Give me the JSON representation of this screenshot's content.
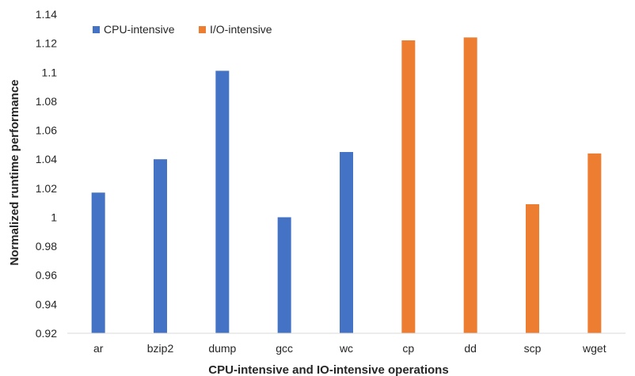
{
  "chart_data": {
    "type": "bar",
    "categories": [
      "ar",
      "bzip2",
      "dump",
      "gcc",
      "wc",
      "cp",
      "dd",
      "scp",
      "wget"
    ],
    "values": [
      1.017,
      1.04,
      1.101,
      1.0,
      1.045,
      1.122,
      1.124,
      1.009,
      1.044
    ],
    "groups": [
      "CPU-intensive",
      "CPU-intensive",
      "CPU-intensive",
      "CPU-intensive",
      "CPU-intensive",
      "I/O-intensive",
      "I/O-intensive",
      "I/O-intensive",
      "I/O-intensive"
    ],
    "series": [
      {
        "name": "CPU-intensive",
        "color": "#4472C4"
      },
      {
        "name": "I/O-intensive",
        "color": "#ED7D31"
      }
    ],
    "title": "",
    "xlabel": "CPU-intensive and IO-intensive operations",
    "ylabel": "Normalized runtime performance",
    "ylim": [
      0.92,
      1.14
    ],
    "yticks": [
      "0.92",
      "0.94",
      "0.96",
      "0.98",
      "1",
      "1.02",
      "1.04",
      "1.06",
      "1.08",
      "1.1",
      "1.12",
      "1.14"
    ],
    "grid": false,
    "legend_position": "top-left"
  }
}
